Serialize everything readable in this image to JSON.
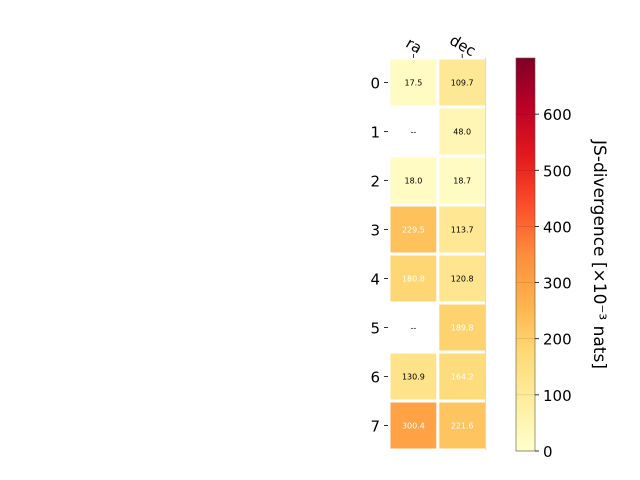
{
  "chart_data": {
    "type": "heatmap",
    "columns": [
      "ra",
      "dec"
    ],
    "rows": [
      "0",
      "1",
      "2",
      "3",
      "4",
      "5",
      "6",
      "7"
    ],
    "values": [
      [
        17.5,
        109.7
      ],
      [
        null,
        48.0
      ],
      [
        18.0,
        18.7
      ],
      [
        229.5,
        113.7
      ],
      [
        180.8,
        120.8
      ],
      [
        null,
        189.8
      ],
      [
        130.9,
        164.2
      ],
      [
        300.4,
        221.6
      ]
    ],
    "cell_labels": [
      [
        "17.5",
        "109.7"
      ],
      [
        "--",
        "48.0"
      ],
      [
        "18.0",
        "18.7"
      ],
      [
        "229.5",
        "113.7"
      ],
      [
        "180.8",
        "120.8"
      ],
      [
        "--",
        "189.8"
      ],
      [
        "130.9",
        "164.2"
      ],
      [
        "300.4",
        "221.6"
      ]
    ],
    "colorbar": {
      "label": "JS-divergence [×10⁻³ nats]",
      "range": [
        0,
        700
      ],
      "ticks": [
        0,
        100,
        200,
        300,
        400,
        500,
        600
      ],
      "tick_labels": [
        "0",
        "100",
        "200",
        "300",
        "400",
        "500",
        "600"
      ],
      "colormap": [
        "#ffffcc",
        "#ffeda0",
        "#fed976",
        "#feb24c",
        "#fd8d3c",
        "#fc4e2a",
        "#e31a1c",
        "#bd0026",
        "#800026"
      ]
    }
  }
}
